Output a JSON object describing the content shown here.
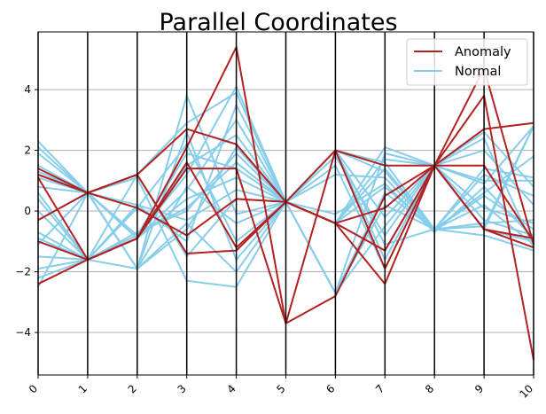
{
  "chart_data": {
    "type": "line",
    "subtype": "parallel-coordinates",
    "title": "Parallel Coordinates",
    "x": [
      "0",
      "1",
      "2",
      "3",
      "4",
      "5",
      "6",
      "7",
      "8",
      "9",
      "10"
    ],
    "xlabel": "",
    "ylabel": "",
    "ylim": [
      -5.4,
      5.9
    ],
    "yticks": [
      "−4",
      "−2",
      "0",
      "2",
      "4"
    ],
    "grid": true,
    "legend": {
      "position": "top-right",
      "entries": [
        "Anomaly",
        "Normal"
      ]
    },
    "colors": {
      "Anomaly": "#b22222",
      "Normal": "#87ceeb",
      "axis_line": "#000000",
      "grid": "#b0b0b0"
    },
    "series": [
      {
        "name": "Normal",
        "lines": [
          [
            2.3,
            0.6,
            -0.9,
            0.4,
            1.1,
            0.3,
            -0.1,
            0.9,
            -0.7,
            0.8,
            -0.9
          ],
          [
            1.9,
            0.6,
            1.2,
            2.9,
            3.9,
            0.3,
            2.0,
            -0.2,
            1.5,
            -0.6,
            2.8
          ],
          [
            1.5,
            0.6,
            -1.9,
            0.8,
            -0.4,
            0.3,
            -2.7,
            1.9,
            1.5,
            2.6,
            0.8
          ],
          [
            1.1,
            0.6,
            0.2,
            -0.3,
            0.7,
            0.3,
            1.2,
            1.1,
            -0.6,
            0.2,
            -1.1
          ],
          [
            0.8,
            0.6,
            -0.9,
            1.5,
            2.5,
            0.3,
            -0.4,
            1.7,
            1.5,
            1.0,
            1.0
          ],
          [
            0.4,
            -1.6,
            -1.9,
            3.8,
            -0.1,
            0.3,
            2.0,
            -1.1,
            -0.6,
            -0.4,
            -0.3
          ],
          [
            0.0,
            -1.6,
            -0.7,
            0.1,
            1.6,
            0.3,
            -0.4,
            2.1,
            1.5,
            0.9,
            2.8
          ],
          [
            -0.3,
            0.6,
            1.1,
            -2.3,
            -2.5,
            0.3,
            -2.7,
            0.6,
            -0.6,
            -0.8,
            -1.3
          ],
          [
            -0.7,
            -1.6,
            -0.8,
            1.2,
            4.1,
            0.3,
            1.8,
            -0.8,
            1.5,
            2.0,
            0.2
          ],
          [
            -1.1,
            0.6,
            -1.9,
            -0.6,
            2.1,
            0.3,
            -0.4,
            1.4,
            -0.6,
            0.5,
            -0.6
          ],
          [
            -1.5,
            -1.6,
            0.1,
            2.2,
            -1.0,
            0.3,
            2.0,
            -1.6,
            1.5,
            -0.6,
            -1.0
          ],
          [
            -1.9,
            -1.6,
            -0.9,
            0.7,
            3.0,
            0.3,
            -2.7,
            0.2,
            -0.6,
            1.4,
            1.1
          ],
          [
            -2.2,
            -1.6,
            1.2,
            -1.5,
            0.4,
            0.3,
            -0.4,
            -1.3,
            1.5,
            0.1,
            -0.4
          ],
          [
            -2.5,
            0.6,
            -1.9,
            -0.4,
            -2.0,
            0.3,
            2.0,
            1.3,
            -0.6,
            -0.5,
            2.8
          ],
          [
            2.1,
            0.6,
            -0.8,
            1.9,
            1.4,
            0.3,
            1.5,
            -1.9,
            1.5,
            2.4,
            -1.2
          ],
          [
            -0.9,
            -1.6,
            0.2,
            -1.0,
            3.5,
            0.3,
            -0.4,
            0.8,
            -0.6,
            1.2,
            0.5
          ],
          [
            1.3,
            0.6,
            -1.9,
            2.6,
            -1.6,
            0.3,
            -2.7,
            -0.5,
            1.5,
            -0.3,
            -0.8
          ],
          [
            0.6,
            -1.6,
            -0.7,
            0.0,
            1.9,
            0.3,
            2.0,
            1.6,
            -0.6,
            0.6,
            1.8
          ]
        ]
      },
      {
        "name": "Anomaly",
        "lines": [
          [
            1.4,
            0.6,
            1.2,
            2.7,
            2.2,
            0.3,
            -0.4,
            -2.4,
            1.5,
            4.7,
            -1.1
          ],
          [
            1.1,
            -1.6,
            -0.9,
            2.1,
            5.4,
            -3.7,
            2.0,
            1.5,
            1.5,
            3.8,
            -4.9
          ],
          [
            -0.3,
            0.6,
            1.2,
            -1.4,
            -1.3,
            0.3,
            -0.4,
            -1.3,
            1.5,
            2.7,
            2.9
          ],
          [
            -1.0,
            -1.6,
            -0.9,
            1.4,
            1.4,
            -3.7,
            -2.8,
            0.5,
            1.5,
            -0.6,
            -0.9
          ],
          [
            -2.4,
            -1.6,
            -0.9,
            1.6,
            -1.2,
            0.3,
            -0.4,
            0.1,
            1.5,
            1.5,
            -1.0
          ],
          [
            1.2,
            0.6,
            0.1,
            -0.8,
            0.4,
            0.3,
            2.0,
            -1.9,
            1.5,
            -0.6,
            -1.2
          ]
        ]
      }
    ]
  }
}
